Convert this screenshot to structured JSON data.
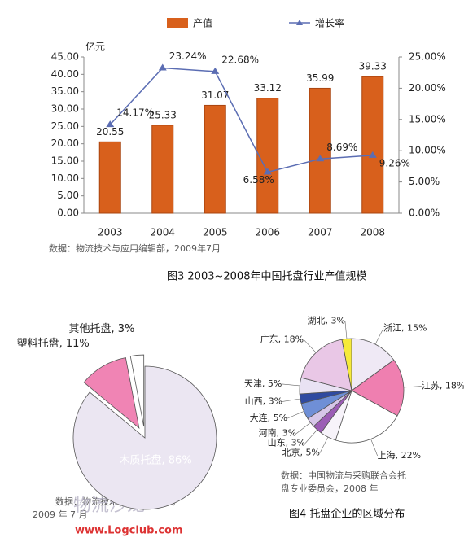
{
  "chart_data": [
    {
      "type": "bar",
      "caption": "图3  2003~2008年中国托盘行业产值规模",
      "source": "数据：物流技术与应用编辑部，2009年7月",
      "y_unit": "亿元",
      "categories": [
        "2003",
        "2004",
        "2005",
        "2006",
        "2007",
        "2008"
      ],
      "series": [
        {
          "name": "产值",
          "type": "bar",
          "color": "#d8601c",
          "values": [
            20.55,
            25.33,
            31.07,
            33.12,
            35.99,
            39.33
          ]
        },
        {
          "name": "增长率",
          "type": "line",
          "axis": "y2",
          "color": "#5b6db3",
          "values": [
            14.17,
            23.24,
            22.68,
            6.58,
            8.69,
            9.26
          ],
          "value_labels": [
            "14.17%",
            "23.24%",
            "22.68%",
            "6.58%",
            "8.69%",
            "9.26%"
          ]
        }
      ],
      "ylim": [
        0,
        45
      ],
      "yticks": [
        {
          "value": 0,
          "label": "0.00"
        },
        {
          "value": 5,
          "label": "5.00"
        },
        {
          "value": 10,
          "label": "10.00"
        },
        {
          "value": 15,
          "label": "15.00"
        },
        {
          "value": 20,
          "label": "20.00"
        },
        {
          "value": 25,
          "label": "25.00"
        },
        {
          "value": 30,
          "label": "30.00"
        },
        {
          "value": 35,
          "label": "35.00"
        },
        {
          "value": 40,
          "label": "40.00"
        },
        {
          "value": 45,
          "label": "45.00"
        }
      ],
      "y2lim": [
        0,
        25
      ],
      "y2ticks": [
        {
          "value": 0,
          "label": "0.00%"
        },
        {
          "value": 5,
          "label": "5.00%"
        },
        {
          "value": 10,
          "label": "10.00%"
        },
        {
          "value": 15,
          "label": "15.00%"
        },
        {
          "value": 20,
          "label": "20.00%"
        },
        {
          "value": 25,
          "label": "25.00%"
        }
      ]
    },
    {
      "type": "pie",
      "source": [
        "数据：物流技术与应用编辑部，",
        "2009 年 7 月"
      ],
      "labels": [
        "木质托盘, 86%",
        "塑料托盘, 11%",
        "其他托盘, 3%"
      ],
      "values": [
        86,
        11,
        3
      ],
      "colors": [
        "#ebe6f2",
        "#f084b4",
        "#ffffff"
      ],
      "explode": [
        0,
        1,
        1
      ]
    },
    {
      "type": "pie",
      "caption": "图4  托盘企业的区域分布",
      "source": [
        "数据：中国物流与采购联合会托",
        "盘专业委员会，2008 年"
      ],
      "labels": [
        "浙江, 15%",
        "江苏, 18%",
        "上海, 22%",
        "北京, 5%",
        "山东, 3%",
        "河南, 3%",
        "大连, 5%",
        "山西, 3%",
        "天津, 5%",
        "广东, 18%",
        "湖北, 3%"
      ],
      "values": [
        15,
        18,
        22,
        5,
        3,
        3,
        5,
        3,
        5,
        18,
        3
      ],
      "colors": [
        "#efe9f5",
        "#ef7fb0",
        "#ffffff",
        "#f7f3fa",
        "#9b5db5",
        "#d6c6e8",
        "#6f8fd6",
        "#2f4aa0",
        "#e9e2f3",
        "#e9c7e6",
        "#f6ea3a"
      ]
    }
  ],
  "watermark": {
    "name": "物流沙龙",
    "url": "www.Logclub.com"
  }
}
